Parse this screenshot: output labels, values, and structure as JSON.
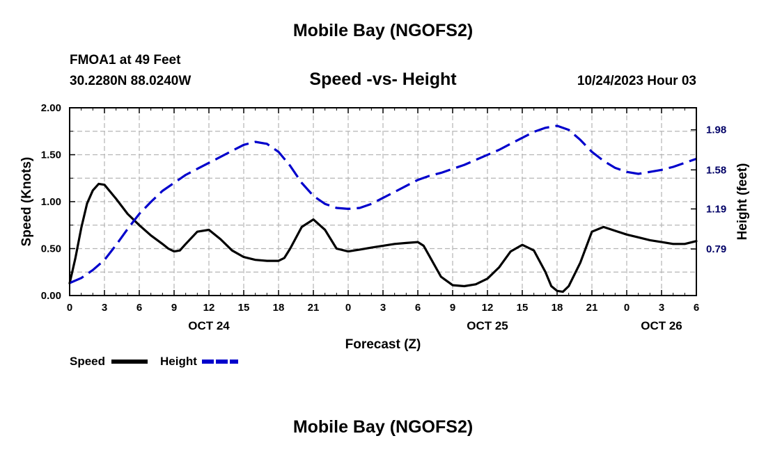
{
  "header": {
    "title": "Mobile Bay (NGOFS2)",
    "station": "FMOA1 at 49 Feet",
    "coords": "30.2280N  88.0240W",
    "subtitle": "Speed -vs- Height",
    "datetime": "10/24/2023 Hour 03",
    "bottom_title": "Mobile Bay (NGOFS2)"
  },
  "chart_data": {
    "type": "line",
    "xlabel": "Forecast (Z)",
    "ylabel": "Speed (Knots)",
    "y2label": "Height (feet)",
    "xlim": [
      0,
      54
    ],
    "ylim": [
      0,
      2
    ],
    "y2lim": [
      0.325,
      2.2
    ],
    "x_ticks": [
      0,
      3,
      6,
      9,
      12,
      15,
      18,
      21,
      24,
      27,
      30,
      33,
      36,
      39,
      42,
      45,
      48,
      51,
      54
    ],
    "x_tick_labels": [
      "0",
      "3",
      "6",
      "9",
      "12",
      "15",
      "18",
      "21",
      "0",
      "3",
      "6",
      "9",
      "12",
      "15",
      "18",
      "21",
      "0",
      "3",
      "6"
    ],
    "date_labels": [
      {
        "x": 12,
        "label": "OCT 24"
      },
      {
        "x": 36,
        "label": "OCT 25"
      },
      {
        "x": 51,
        "label": "OCT 26"
      }
    ],
    "y_ticks": [
      0,
      0.5,
      1,
      1.5,
      2
    ],
    "y_tick_labels": [
      "0.00",
      "0.50",
      "1.00",
      "1.50",
      "2.00"
    ],
    "y2_ticks": [
      0.79,
      1.19,
      1.58,
      1.98
    ],
    "y2_tick_labels": [
      "0.79",
      "1.19",
      "1.58",
      "1.98"
    ],
    "series": [
      {
        "name": "Speed",
        "axis": "left",
        "color": "#000000",
        "dash": "solid",
        "x": [
          0,
          0.5,
          1,
          1.5,
          2,
          2.5,
          3,
          4,
          5,
          6,
          7,
          8,
          8.5,
          9,
          9.5,
          10,
          11,
          12,
          13,
          14,
          15,
          16,
          17,
          18,
          18.5,
          19,
          20,
          21,
          22,
          23,
          24,
          25,
          26,
          27,
          28,
          29,
          30,
          30.5,
          31,
          32,
          33,
          34,
          35,
          36,
          37,
          38,
          39,
          40,
          41,
          41.5,
          42,
          42.5,
          43,
          44,
          45,
          46,
          47,
          48,
          49,
          50,
          51,
          52,
          53,
          54
        ],
        "y": [
          0.13,
          0.4,
          0.72,
          0.98,
          1.12,
          1.19,
          1.18,
          1.03,
          0.87,
          0.75,
          0.64,
          0.55,
          0.5,
          0.47,
          0.48,
          0.55,
          0.68,
          0.7,
          0.6,
          0.48,
          0.41,
          0.38,
          0.37,
          0.37,
          0.4,
          0.5,
          0.73,
          0.81,
          0.7,
          0.5,
          0.47,
          0.49,
          0.51,
          0.53,
          0.55,
          0.56,
          0.57,
          0.53,
          0.42,
          0.2,
          0.11,
          0.1,
          0.12,
          0.18,
          0.3,
          0.47,
          0.54,
          0.48,
          0.25,
          0.1,
          0.05,
          0.04,
          0.1,
          0.35,
          0.68,
          0.73,
          0.69,
          0.65,
          0.62,
          0.59,
          0.57,
          0.55,
          0.55,
          0.58
        ]
      },
      {
        "name": "Height",
        "axis": "right",
        "color": "#0000cc",
        "dash": "dashed",
        "x": [
          0,
          1,
          2,
          3,
          4,
          5,
          6,
          7,
          8,
          9,
          10,
          11,
          12,
          13,
          14,
          15,
          16,
          17,
          18,
          19,
          20,
          21,
          22,
          23,
          24,
          25,
          26,
          27,
          28,
          29,
          30,
          31,
          32,
          33,
          34,
          35,
          36,
          37,
          38,
          39,
          40,
          41,
          42,
          43,
          44,
          45,
          46,
          47,
          48,
          49,
          50,
          51,
          52,
          53,
          54
        ],
        "y": [
          0.45,
          0.5,
          0.58,
          0.68,
          0.83,
          0.99,
          1.14,
          1.26,
          1.37,
          1.45,
          1.53,
          1.59,
          1.65,
          1.71,
          1.77,
          1.83,
          1.86,
          1.84,
          1.76,
          1.62,
          1.45,
          1.32,
          1.24,
          1.2,
          1.19,
          1.2,
          1.24,
          1.3,
          1.36,
          1.42,
          1.48,
          1.52,
          1.55,
          1.59,
          1.63,
          1.68,
          1.73,
          1.78,
          1.84,
          1.9,
          1.96,
          2.0,
          2.02,
          1.98,
          1.88,
          1.76,
          1.67,
          1.6,
          1.56,
          1.54,
          1.56,
          1.58,
          1.61,
          1.65,
          1.69
        ]
      }
    ],
    "legend": [
      {
        "label": "Speed",
        "color": "#000000",
        "dash": "solid"
      },
      {
        "label": "Height",
        "color": "#0000cc",
        "dash": "dashed"
      }
    ],
    "legend_position": "bottom-left",
    "grid": true
  }
}
